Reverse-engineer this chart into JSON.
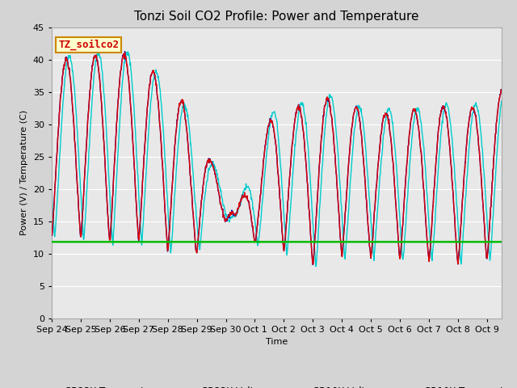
{
  "title": "Tonzi Soil CO2 Profile: Power and Temperature",
  "xlabel": "Time",
  "ylabel": "Power (V) / Temperature (C)",
  "ylim": [
    0,
    45
  ],
  "yticks": [
    0,
    5,
    10,
    15,
    20,
    25,
    30,
    35,
    40,
    45
  ],
  "annotation_text": "TZ_soilco2",
  "annotation_box_color": "#ffffcc",
  "annotation_box_edge": "#cc8800",
  "annotation_text_color": "#cc0000",
  "cr10x_voltage_value": 11.8,
  "fig_bg_color": "#d4d4d4",
  "plot_bg_color": "#e8e8e8",
  "grid_color": "#ffffff",
  "cr23x_temp_color": "#dd0000",
  "cr23x_volt_color": "#0000bb",
  "cr10x_volt_color": "#00bb00",
  "cr10x_temp_color": "#00cccc",
  "line_width": 1.0,
  "title_fontsize": 11,
  "tick_label_fontsize": 8,
  "legend_fontsize": 8.5,
  "tick_labels": [
    "Sep 24",
    "Sep 25",
    "Sep 26",
    "Sep 27",
    "Sep 28",
    "Sep 29",
    "Sep 30",
    "Oct 1",
    "Oct 2",
    "Oct 3",
    "Oct 4",
    "Oct 5",
    "Oct 6",
    "Oct 7",
    "Oct 8",
    "Oct 9"
  ],
  "total_days": 15.5,
  "n_points": 1200,
  "peak_envelope": [
    40,
    40,
    40.5,
    41,
    40.5,
    38,
    36,
    29.5,
    23,
    16,
    25,
    33,
    32.5,
    34,
    34,
    32.5,
    31,
    33,
    32,
    33,
    32,
    33,
    35
  ],
  "min_envelope": [
    12.5,
    12.5,
    12,
    11.5,
    12,
    11.5,
    10,
    9.5,
    15,
    15,
    11.5,
    11,
    9,
    8,
    10,
    8,
    10,
    9,
    8.5,
    9,
    8.5,
    9,
    9
  ]
}
